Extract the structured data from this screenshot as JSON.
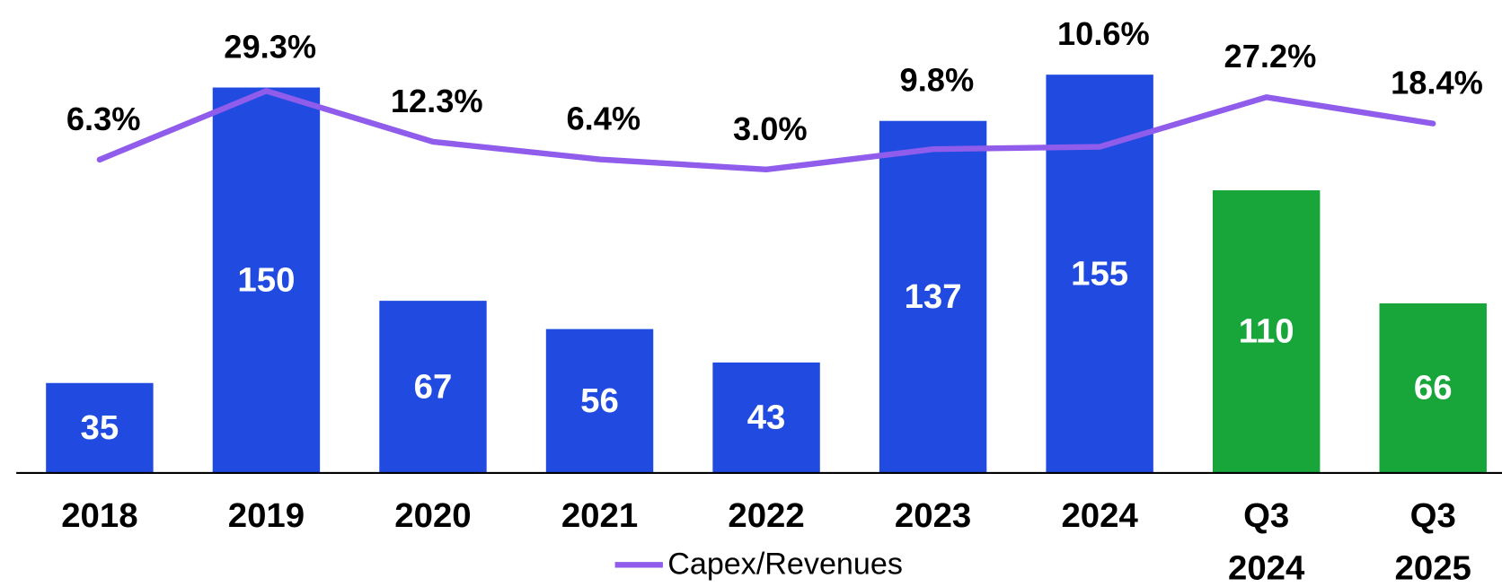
{
  "chart_data": {
    "type": "bar_line",
    "categories": [
      "2018",
      "2019",
      "2020",
      "2021",
      "2022",
      "2023",
      "2024",
      "Q3 2024",
      "Q3 2025"
    ],
    "series": [
      {
        "type": "bar",
        "values": [
          35,
          150,
          67,
          56,
          43,
          137,
          155,
          110,
          66
        ],
        "colors": [
          "#214be0",
          "#214be0",
          "#214be0",
          "#214be0",
          "#214be0",
          "#214be0",
          "#214be0",
          "#18a63a",
          "#18a63a"
        ]
      },
      {
        "type": "line",
        "name": "Capex/Revenues",
        "color": "#8f5ceb",
        "axis": "y2",
        "values": [
          6.3,
          29.3,
          12.3,
          6.4,
          3.0,
          9.8,
          10.6,
          27.2,
          18.4
        ],
        "value_labels": [
          "6.3%",
          "29.3%",
          "12.3%",
          "6.4%",
          "3.0%",
          "9.8%",
          "10.6%",
          "27.2%",
          "18.4%"
        ]
      }
    ],
    "ylim": [
      0,
      184
    ],
    "y2lim": [
      -98.6,
      59.7
    ],
    "legend": "bottom"
  }
}
